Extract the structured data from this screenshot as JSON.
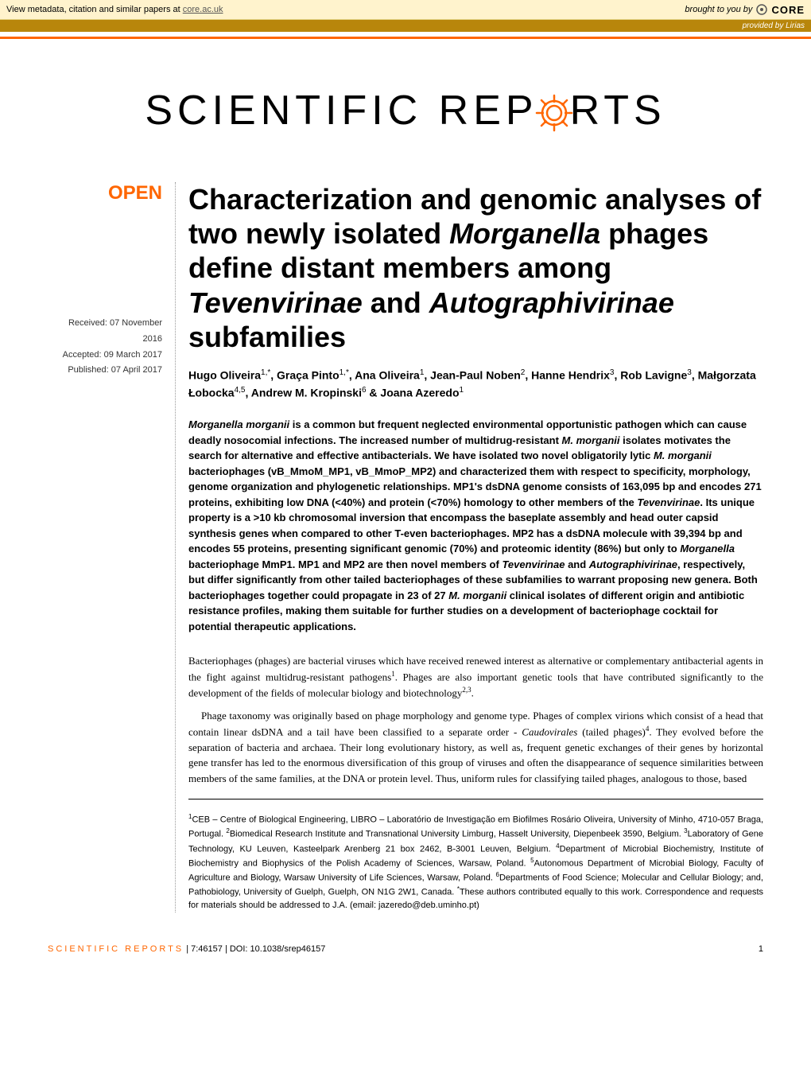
{
  "metadata_bar": {
    "text_prefix": "View metadata, citation and similar papers at ",
    "link_text": "core.ac.uk",
    "brought_by": "brought to you by",
    "core_label": "CORE",
    "provided_by": "provided by Lirias"
  },
  "journal": {
    "name_part1": "SCIENTIFIC ",
    "name_part2": "REP",
    "name_part3": "RTS",
    "gear_color": "#ff6600"
  },
  "open_badge": "OPEN",
  "dates": {
    "received": "Received: 07 November 2016",
    "accepted": "Accepted: 09 March 2017",
    "published": "Published: 07 April 2017"
  },
  "title_html": "Characterization and genomic analyses of two newly isolated <em>Morganella</em> phages define distant members among <em>Tevenvirinae</em> and <em>Autographivirinae</em> subfamilies",
  "authors_html": "Hugo Oliveira<sup>1,*</sup>, Graça Pinto<sup>1,*</sup>, Ana Oliveira<sup>1</sup>, Jean-Paul Noben<sup>2</sup>, Hanne Hendrix<sup>3</sup>, Rob Lavigne<sup>3</sup>, Małgorzata Łobocka<sup>4,5</sup>, Andrew M. Kropinski<sup>6</sup> & Joana Azeredo<sup>1</sup>",
  "abstract_html": "<em>Morganella morganii</em> is a common but frequent neglected environmental opportunistic pathogen which can cause deadly nosocomial infections. The increased number of multidrug-resistant <em>M. morganii</em> isolates motivates the search for alternative and effective antibacterials. We have isolated two novel obligatorily lytic <em>M. morganii</em> bacteriophages (vB_MmoM_MP1, vB_MmoP_MP2) and characterized them with respect to specificity, morphology, genome organization and phylogenetic relationships. MP1's dsDNA genome consists of 163,095 bp and encodes 271 proteins, exhibiting low DNA (<40%) and protein (<70%) homology to other members of the <em>Tevenvirinae</em>. Its unique property is a >10 kb chromosomal inversion that encompass the baseplate assembly and head outer capsid synthesis genes when compared to other T-even bacteriophages. MP2 has a dsDNA molecule with 39,394 bp and encodes 55 proteins, presenting significant genomic (70%) and proteomic identity (86%) but only to <em>Morganella</em> bacteriophage MmP1. MP1 and MP2 are then novel members of <em>Tevenvirinae</em> and <em>Autographivirinae</em>, respectively, but differ significantly from other tailed bacteriophages of these subfamilies to warrant proposing new genera. Both bacteriophages together could propagate in 23 of 27 <em>M. morganii</em> clinical isolates of different origin and antibiotic resistance profiles, making them suitable for further studies on a development of bacteriophage cocktail for potential therapeutic applications.",
  "body_paragraphs": [
    "Bacteriophages (phages) are bacterial viruses which have received renewed interest as alternative or complementary antibacterial agents in the fight against multidrug-resistant pathogens<sup>1</sup>. Phages are also important genetic tools that have contributed significantly to the development of the fields of molecular biology and biotechnology<sup>2,3</sup>.",
    "Phage taxonomy was originally based on phage morphology and genome type. Phages of complex virions which consist of a head that contain linear dsDNA and a tail have been classified to a separate order - <em>Caudovirales</em> (tailed phages)<sup>4</sup>. They evolved before the separation of bacteria and archaea. Their long evolutionary history, as well as, frequent genetic exchanges of their genes by horizontal gene transfer has led to the enormous diversification of this group of viruses and often the disappearance of sequence similarities between members of the same families, at the DNA or protein level. Thus, uniform rules for classifying tailed phages, analogous to those, based"
  ],
  "affiliations_html": "<sup>1</sup>CEB – Centre of Biological Engineering, LIBRO – Laboratório de Investigação em Biofilmes Rosário Oliveira, University of Minho, 4710-057 Braga, Portugal. <sup>2</sup>Biomedical Research Institute and Transnational University Limburg, Hasselt University, Diepenbeek 3590, Belgium. <sup>3</sup>Laboratory of Gene Technology, KU Leuven, Kasteelpark Arenberg 21 box 2462, B-3001 Leuven, Belgium. <sup>4</sup>Department of Microbial Biochemistry, Institute of Biochemistry and Biophysics of the Polish Academy of Sciences, Warsaw, Poland. <sup>5</sup>Autonomous Department of Microbial Biology, Faculty of Agriculture and Biology, Warsaw University of Life Sciences, Warsaw, Poland. <sup>6</sup>Departments of Food Science; Molecular and Cellular Biology; and, Pathobiology, University of Guelph, Guelph, ON N1G 2W1, Canada. <sup>*</sup>These authors contributed equally to this work. Correspondence and requests for materials should be addressed to J.A. (email: jazeredo@deb.uminho.pt)",
  "footer": {
    "journal_caps": "SCIENTIFIC REPORTS",
    "citation": " | 7:46157 | DOI: 10.1038/srep46157",
    "page_number": "1"
  },
  "colors": {
    "accent": "#ff6600",
    "metadata_bg": "#fff3cd",
    "provided_bg": "#b8860b",
    "text": "#000000",
    "background": "#ffffff"
  },
  "typography": {
    "title_fontsize": 36,
    "author_fontsize": 14,
    "abstract_fontsize": 13,
    "body_fontsize": 13,
    "affil_fontsize": 11,
    "logo_fontsize": 52,
    "logo_letterspacing": 6,
    "open_badge_fontsize": 24
  }
}
